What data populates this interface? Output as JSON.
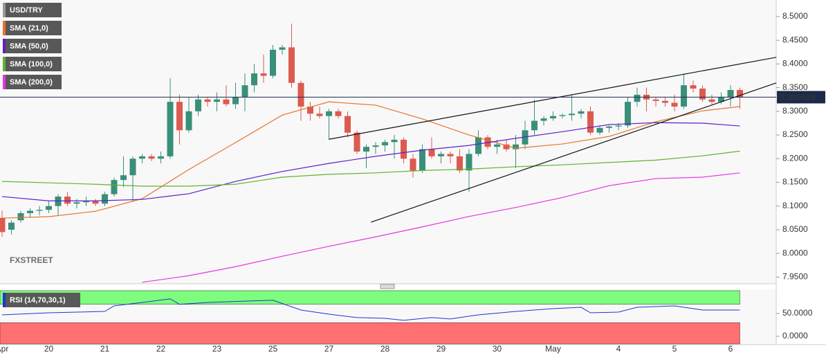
{
  "chart_data": [
    {
      "type": "candlestick",
      "name": "USD/TRY",
      "up_color": "#3a8f7a",
      "down_color": "#dc5a4f",
      "categories": [
        "Apr",
        null,
        null,
        null,
        null,
        "20",
        null,
        null,
        null,
        null,
        null,
        "21",
        null,
        null,
        null,
        null,
        null,
        "22",
        null,
        null,
        null,
        null,
        null,
        "23",
        null,
        null,
        null,
        null,
        null,
        "25",
        null,
        null,
        null,
        null,
        null,
        "27",
        null,
        null,
        null,
        null,
        null,
        "28",
        null,
        null,
        null,
        null,
        null,
        "29",
        null,
        null,
        null,
        null,
        null,
        "30",
        null,
        null,
        null,
        null,
        null,
        "May",
        null,
        null,
        null,
        null,
        null,
        null,
        "4",
        null,
        null,
        null,
        null,
        null,
        "5",
        null,
        null,
        null,
        null,
        null,
        "6",
        null
      ],
      "open": [
        8.075,
        8.05,
        8.07,
        8.085,
        8.09,
        8.092,
        8.1,
        8.12,
        8.105,
        8.108,
        8.11,
        8.105,
        8.125,
        8.155,
        8.165,
        8.2,
        8.205,
        8.2,
        8.205,
        8.32,
        8.26,
        8.3,
        8.325,
        8.32,
        8.325,
        8.315,
        8.33,
        8.355,
        8.38,
        8.375,
        8.43,
        8.435,
        8.36,
        8.31,
        8.295,
        8.29,
        8.3,
        8.29,
        8.255,
        8.215,
        8.225,
        8.228,
        8.235,
        8.24,
        8.2,
        8.175,
        8.22,
        8.205,
        8.21,
        8.205,
        8.175,
        8.21,
        8.245,
        8.225,
        8.23,
        8.22,
        8.23,
        8.26,
        8.28,
        8.285,
        8.29,
        8.292,
        8.295,
        8.3,
        8.255,
        8.265,
        8.268,
        8.27,
        8.32,
        8.335,
        8.325,
        8.322,
        8.318,
        8.31,
        8.355,
        8.348,
        8.325,
        8.32,
        8.33,
        8.345
      ],
      "high": [
        8.09,
        8.07,
        8.09,
        8.095,
        8.1,
        8.11,
        8.125,
        8.13,
        8.115,
        8.12,
        8.115,
        8.13,
        8.16,
        8.205,
        8.205,
        8.21,
        8.21,
        8.215,
        8.37,
        8.335,
        8.33,
        8.335,
        8.33,
        8.34,
        8.355,
        8.36,
        8.38,
        8.4,
        8.42,
        8.44,
        8.44,
        8.485,
        8.365,
        8.32,
        8.31,
        8.305,
        8.305,
        8.3,
        8.26,
        8.23,
        8.235,
        8.24,
        8.25,
        8.245,
        8.21,
        8.23,
        8.245,
        8.215,
        8.215,
        8.22,
        8.22,
        8.26,
        8.25,
        8.24,
        8.24,
        8.25,
        8.28,
        8.325,
        8.29,
        8.3,
        8.295,
        8.335,
        8.305,
        8.31,
        8.27,
        8.27,
        8.275,
        8.33,
        8.35,
        8.35,
        8.33,
        8.33,
        8.335,
        8.38,
        8.365,
        8.355,
        8.335,
        8.34,
        8.355,
        8.35
      ],
      "low": [
        8.035,
        8.04,
        8.065,
        8.075,
        8.08,
        8.085,
        8.08,
        8.1,
        8.095,
        8.1,
        8.1,
        8.1,
        8.12,
        8.14,
        8.11,
        8.19,
        8.195,
        8.19,
        8.2,
        8.23,
        8.255,
        8.29,
        8.31,
        8.3,
        8.31,
        8.305,
        8.3,
        8.34,
        8.36,
        8.37,
        8.42,
        8.35,
        8.28,
        8.28,
        8.285,
        8.24,
        8.285,
        8.245,
        8.21,
        8.18,
        8.21,
        8.215,
        8.2,
        8.19,
        8.16,
        8.17,
        8.2,
        8.19,
        8.19,
        8.17,
        8.13,
        8.205,
        8.22,
        8.21,
        8.215,
        8.18,
        8.22,
        8.25,
        8.27,
        8.28,
        8.285,
        8.28,
        8.285,
        8.25,
        8.25,
        8.255,
        8.26,
        8.265,
        8.31,
        8.3,
        8.31,
        8.31,
        8.3,
        8.305,
        8.34,
        8.32,
        8.315,
        8.315,
        8.31,
        8.305
      ],
      "close": [
        8.045,
        8.065,
        8.085,
        8.09,
        8.092,
        8.1,
        8.12,
        8.105,
        8.108,
        8.11,
        8.105,
        8.125,
        8.155,
        8.165,
        8.2,
        8.205,
        8.2,
        8.205,
        8.32,
        8.26,
        8.3,
        8.325,
        8.32,
        8.325,
        8.315,
        8.33,
        8.355,
        8.38,
        8.375,
        8.43,
        8.435,
        8.36,
        8.31,
        8.295,
        8.29,
        8.3,
        8.29,
        8.255,
        8.215,
        8.225,
        8.228,
        8.235,
        8.24,
        8.2,
        8.175,
        8.22,
        8.205,
        8.21,
        8.205,
        8.175,
        8.21,
        8.245,
        8.225,
        8.23,
        8.22,
        8.23,
        8.26,
        8.28,
        8.285,
        8.29,
        8.292,
        8.295,
        8.3,
        8.255,
        8.265,
        8.268,
        8.27,
        8.32,
        8.335,
        8.325,
        8.322,
        8.318,
        8.31,
        8.355,
        8.348,
        8.325,
        8.32,
        8.33,
        8.345,
        8.33
      ],
      "series": [
        {
          "name": "SMA (21,0)",
          "color": "#e8742a",
          "x": [
            0,
            5,
            10,
            15,
            20,
            25,
            30,
            35,
            40,
            45,
            50,
            55,
            60,
            65,
            70,
            75,
            79
          ],
          "values": [
            8.0745,
            8.0775,
            8.089,
            8.1155,
            8.177,
            8.234,
            8.292,
            8.32,
            8.313,
            8.284,
            8.25,
            8.222,
            8.231,
            8.247,
            8.278,
            8.301,
            8.31
          ]
        },
        {
          "name": "SMA (50,0)",
          "color": "#5b1fc9",
          "x": [
            0,
            5,
            10,
            15,
            20,
            25,
            30,
            35,
            40,
            45,
            50,
            55,
            60,
            65,
            70,
            75,
            79
          ],
          "values": [
            8.12,
            8.111,
            8.111,
            8.114,
            8.126,
            8.152,
            8.173,
            8.19,
            8.205,
            8.218,
            8.228,
            8.243,
            8.257,
            8.272,
            8.276,
            8.275,
            8.269
          ]
        },
        {
          "name": "SMA (100,0)",
          "color": "#5fb32e",
          "x": [
            0,
            5,
            10,
            15,
            20,
            25,
            30,
            35,
            40,
            45,
            50,
            55,
            60,
            65,
            70,
            75,
            79
          ],
          "values": [
            8.152,
            8.149,
            8.146,
            8.142,
            8.142,
            8.146,
            8.161,
            8.167,
            8.17,
            8.175,
            8.178,
            8.183,
            8.187,
            8.192,
            8.197,
            8.206,
            8.216
          ]
        },
        {
          "name": "SMA (200,0)",
          "color": "#e633e6",
          "x": [
            15,
            20,
            25,
            30,
            35,
            40,
            45,
            50,
            55,
            60,
            65,
            70,
            75,
            79
          ],
          "values": [
            7.939,
            7.953,
            7.972,
            7.994,
            8.015,
            8.035,
            8.056,
            8.078,
            8.097,
            8.118,
            8.143,
            8.158,
            8.161,
            8.17
          ]
        }
      ],
      "trendlines": [
        {
          "color": "#111111",
          "x": [
            35,
            82.9
          ],
          "values": [
            8.241,
            8.414
          ]
        },
        {
          "color": "#111111",
          "x": [
            39.5,
            82.9
          ],
          "values": [
            8.066,
            8.36
          ]
        }
      ],
      "last_price": 8.329825,
      "ylim": [
        7.936,
        8.535
      ],
      "yticks": [
        {
          "value": 7.95,
          "label": "7.9500"
        },
        {
          "value": 8.0,
          "label": "8.0000"
        },
        {
          "value": 8.05,
          "label": "8.0500"
        },
        {
          "value": 8.1,
          "label": "8.1000"
        },
        {
          "value": 8.15,
          "label": "8.1500"
        },
        {
          "value": 8.2,
          "label": "8.2000"
        },
        {
          "value": 8.25,
          "label": "8.2500"
        },
        {
          "value": 8.3,
          "label": "8.3000"
        },
        {
          "value": 8.35,
          "label": "8.3500"
        },
        {
          "value": 8.4,
          "label": "8.4000"
        },
        {
          "value": 8.45,
          "label": "8.4500"
        },
        {
          "value": 8.5,
          "label": "8.5000"
        }
      ],
      "watermark": "FXSTREET"
    },
    {
      "type": "line",
      "name": "RSI (14,70,30,1)",
      "color": "#1a35d6",
      "x": [
        0,
        5,
        11,
        12,
        15,
        18,
        19,
        22,
        26,
        29,
        32,
        35,
        38,
        41,
        43,
        46,
        48,
        51,
        55,
        59,
        62,
        63,
        66,
        68,
        72,
        75,
        79
      ],
      "values": [
        47,
        51.5,
        54.5,
        66.7,
        74,
        82,
        70,
        74,
        77,
        79,
        57.6,
        48.5,
        41,
        39.4,
        35,
        41,
        38,
        47,
        54.5,
        60.6,
        63.6,
        51.5,
        53,
        63.6,
        66.7,
        57.6,
        57.6
      ],
      "overbought": 70,
      "oversold": 30,
      "ylim": [
        -16.7,
        100
      ],
      "yticks": [
        {
          "value": 50,
          "label": "50.0000"
        },
        {
          "value": 0,
          "label": "0.0000"
        }
      ]
    }
  ]
}
